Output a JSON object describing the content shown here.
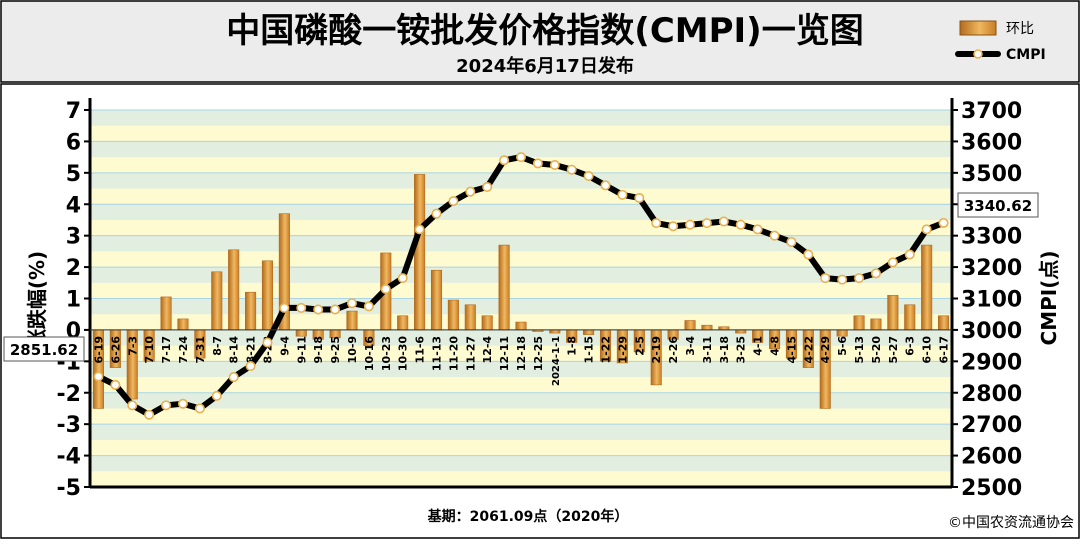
{
  "header": {
    "title": "中国磷酸一铵批发价格指数(CMPI)一览图",
    "subtitle": "2024年6月17日发布"
  },
  "legend": {
    "bar_label": "环比",
    "line_label": "CMPI"
  },
  "footer": {
    "base_note": "基期：2061.09点（2020年）",
    "copyright": "©中国农资流通协会"
  },
  "callouts": {
    "first_value": "2851.62",
    "last_value": "3340.62"
  },
  "colors": {
    "bar": "#e8a94a",
    "bar_dark": "#b26a1c",
    "plot_bg": "#fffbd0",
    "stripe": "#c9e3ec",
    "grid": "#a8d4e6",
    "line": "#000000",
    "marker": "#ffffff",
    "marker_center": "#e9b04e",
    "frame": "#000000"
  },
  "chart_data": {
    "type": "bar+line",
    "categories": [
      "6-19",
      "6-26",
      "7-3",
      "7-10",
      "7-17",
      "7-24",
      "7-31",
      "8-7",
      "8-14",
      "8-21",
      "8-28",
      "9-4",
      "9-11",
      "9-18",
      "9-25",
      "10-9",
      "10-16",
      "10-23",
      "10-30",
      "11-6",
      "11-13",
      "11-20",
      "11-27",
      "12-4",
      "12-11",
      "12-18",
      "12-25",
      "2024-1-1",
      "1-8",
      "1-15",
      "1-22",
      "1-29",
      "2-5",
      "2-19",
      "2-26",
      "3-4",
      "3-11",
      "3-18",
      "3-25",
      "4-1",
      "4-8",
      "4-15",
      "4-22",
      "4-29",
      "5-6",
      "5-13",
      "5-20",
      "5-27",
      "6-3",
      "6-10",
      "6-17"
    ],
    "series": [
      {
        "name": "环比",
        "axis": "left",
        "unit": "%",
        "values": [
          -2.5,
          -1.2,
          -2.2,
          -1.0,
          1.05,
          0.35,
          -0.9,
          1.85,
          2.55,
          1.2,
          2.2,
          3.7,
          -0.2,
          -0.3,
          -0.25,
          0.6,
          -0.5,
          2.45,
          0.45,
          4.95,
          1.9,
          0.95,
          0.8,
          0.45,
          2.7,
          0.25,
          -0.05,
          -0.1,
          -0.4,
          -0.15,
          -1.0,
          -1.05,
          -0.7,
          -1.75,
          -0.3,
          0.3,
          0.15,
          0.1,
          -0.1,
          -0.4,
          -0.6,
          -0.9,
          -1.2,
          -2.5,
          -0.2,
          0.45,
          0.35,
          1.1,
          0.8,
          2.7,
          0.45
        ]
      },
      {
        "name": "CMPI",
        "axis": "right",
        "unit": "点",
        "values": [
          2851.62,
          2825,
          2760,
          2730,
          2760,
          2765,
          2750,
          2790,
          2850,
          2885,
          2960,
          3070,
          3070,
          3065,
          3065,
          3085,
          3075,
          3130,
          3165,
          3320,
          3370,
          3410,
          3440,
          3455,
          3540,
          3550,
          3530,
          3525,
          3510,
          3490,
          3460,
          3430,
          3420,
          3340,
          3330,
          3335,
          3340,
          3345,
          3335,
          3320,
          3300,
          3280,
          3240,
          3165,
          3160,
          3165,
          3180,
          3215,
          3240,
          3320,
          3340.62
        ]
      }
    ],
    "y_left": {
      "label": "涨跌幅(%)",
      "min": -5,
      "max": 7,
      "ticks": [
        -5,
        -4,
        -3,
        -2,
        -1,
        0,
        1,
        2,
        3,
        4,
        5,
        6,
        7
      ]
    },
    "y_right": {
      "label": "CMPI(点)",
      "min": 2500,
      "max": 3700,
      "ticks": [
        2500,
        2600,
        2700,
        2800,
        2900,
        3000,
        3100,
        3200,
        3300,
        3400,
        3500,
        3600,
        3700
      ]
    },
    "grid": true,
    "legend_position": "top-right"
  }
}
